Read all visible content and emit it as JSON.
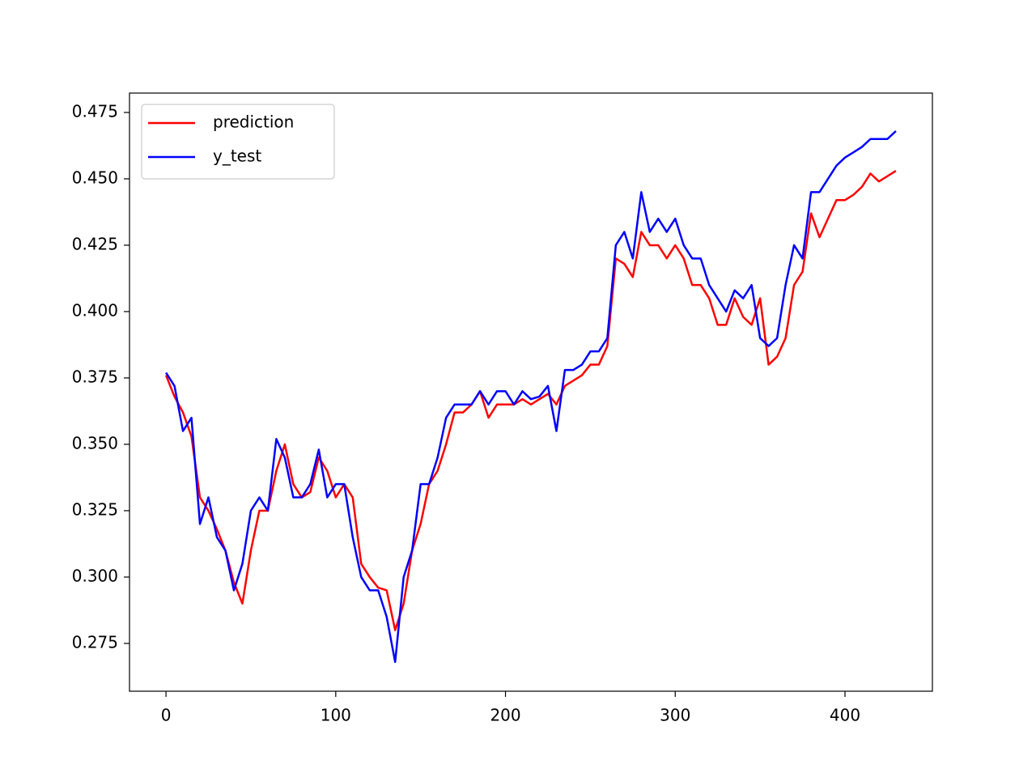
{
  "chart_data": {
    "type": "line",
    "x": [
      0,
      5,
      10,
      15,
      20,
      25,
      30,
      35,
      40,
      45,
      50,
      55,
      60,
      65,
      70,
      75,
      80,
      85,
      90,
      95,
      100,
      105,
      110,
      115,
      120,
      125,
      130,
      135,
      140,
      145,
      150,
      155,
      160,
      165,
      170,
      175,
      180,
      185,
      190,
      195,
      200,
      205,
      210,
      215,
      220,
      225,
      230,
      235,
      240,
      245,
      250,
      255,
      260,
      265,
      270,
      275,
      280,
      285,
      290,
      295,
      300,
      305,
      310,
      315,
      320,
      325,
      330,
      335,
      340,
      345,
      350,
      355,
      360,
      365,
      370,
      375,
      380,
      385,
      390,
      395,
      400,
      405,
      410,
      415,
      420,
      425,
      430
    ],
    "series": [
      {
        "name": "prediction",
        "color": "#ff0000",
        "values": [
          0.376,
          0.368,
          0.362,
          0.353,
          0.33,
          0.325,
          0.318,
          0.31,
          0.298,
          0.29,
          0.31,
          0.325,
          0.325,
          0.34,
          0.35,
          0.335,
          0.33,
          0.332,
          0.345,
          0.34,
          0.33,
          0.335,
          0.33,
          0.305,
          0.3,
          0.296,
          0.295,
          0.28,
          0.29,
          0.31,
          0.32,
          0.335,
          0.34,
          0.35,
          0.362,
          0.362,
          0.365,
          0.37,
          0.36,
          0.365,
          0.365,
          0.365,
          0.367,
          0.365,
          0.367,
          0.369,
          0.365,
          0.372,
          0.374,
          0.376,
          0.38,
          0.38,
          0.387,
          0.42,
          0.418,
          0.413,
          0.43,
          0.425,
          0.425,
          0.42,
          0.425,
          0.42,
          0.41,
          0.41,
          0.405,
          0.395,
          0.395,
          0.405,
          0.398,
          0.395,
          0.405,
          0.38,
          0.383,
          0.39,
          0.41,
          0.415,
          0.437,
          0.428,
          0.435,
          0.442,
          0.442,
          0.444,
          0.447,
          0.452,
          0.449,
          0.451,
          0.453
        ]
      },
      {
        "name": "y_test",
        "color": "#0000ff",
        "values": [
          0.377,
          0.372,
          0.355,
          0.36,
          0.32,
          0.33,
          0.315,
          0.31,
          0.295,
          0.305,
          0.325,
          0.33,
          0.325,
          0.352,
          0.345,
          0.33,
          0.33,
          0.335,
          0.348,
          0.33,
          0.335,
          0.335,
          0.315,
          0.3,
          0.295,
          0.295,
          0.285,
          0.268,
          0.3,
          0.31,
          0.335,
          0.335,
          0.345,
          0.36,
          0.365,
          0.365,
          0.365,
          0.37,
          0.365,
          0.37,
          0.37,
          0.365,
          0.37,
          0.367,
          0.368,
          0.372,
          0.355,
          0.378,
          0.378,
          0.38,
          0.385,
          0.385,
          0.39,
          0.425,
          0.43,
          0.42,
          0.445,
          0.43,
          0.435,
          0.43,
          0.435,
          0.425,
          0.42,
          0.42,
          0.41,
          0.405,
          0.4,
          0.408,
          0.405,
          0.41,
          0.39,
          0.387,
          0.39,
          0.41,
          0.425,
          0.42,
          0.445,
          0.445,
          0.45,
          0.455,
          0.458,
          0.46,
          0.462,
          0.465,
          0.465,
          0.465,
          0.468
        ]
      }
    ],
    "xlim": [
      -21.5,
      451.5
    ],
    "xticks": [
      0,
      100,
      200,
      300,
      400
    ],
    "ylim": [
      0.257,
      0.4823
    ],
    "yticks": [
      0.275,
      {
        "value": 0.3,
        "label": "0.300"
      },
      0.325,
      {
        "value": 0.35,
        "label": "0.350"
      },
      0.375,
      {
        "value": 0.4,
        "label": "0.400"
      },
      0.425,
      {
        "value": 0.45,
        "label": "0.450"
      },
      0.475
    ],
    "legend": "upper left"
  }
}
